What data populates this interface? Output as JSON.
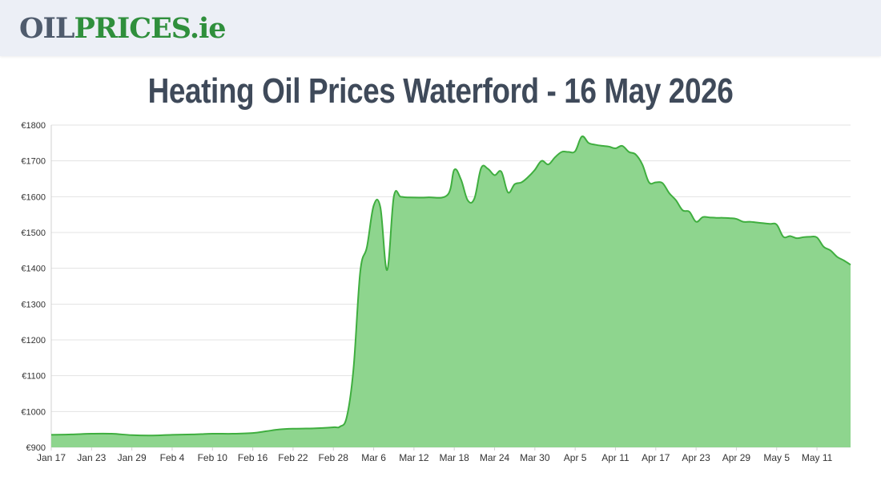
{
  "header": {
    "logo_part1": "OIL",
    "logo_part2": "PRICES",
    "logo_part3": ".ie"
  },
  "page": {
    "title": "Heating Oil Prices Waterford - 16 May 2026"
  },
  "colors": {
    "accent": "#2f8f3c",
    "line": "#3fae3f",
    "fill": "#8ed58e",
    "header_bg": "#eceff6",
    "title": "#3f4a5a"
  },
  "chart_data": {
    "type": "area",
    "title": "",
    "xlabel": "",
    "ylabel": "",
    "ylim": [
      900,
      1800
    ],
    "y_ticks": [
      900,
      1000,
      1100,
      1200,
      1300,
      1400,
      1500,
      1600,
      1700,
      1800
    ],
    "y_tick_labels": [
      "€900",
      "€1000",
      "€1100",
      "€1200",
      "€1300",
      "€1400",
      "€1500",
      "€1600",
      "€1700",
      "€1800"
    ],
    "x_range": [
      "2026-01-17",
      "2026-05-16"
    ],
    "x_ticks": [
      "2026-01-17",
      "2026-01-23",
      "2026-01-29",
      "2026-02-04",
      "2026-02-10",
      "2026-02-16",
      "2026-02-22",
      "2026-02-28",
      "2026-03-06",
      "2026-03-12",
      "2026-03-18",
      "2026-03-24",
      "2026-03-30",
      "2026-04-05",
      "2026-04-11",
      "2026-04-17",
      "2026-04-23",
      "2026-04-29",
      "2026-05-05",
      "2026-05-11"
    ],
    "x_tick_labels": [
      "Jan 17",
      "Jan 23",
      "Jan 29",
      "Feb 4",
      "Feb 10",
      "Feb 16",
      "Feb 22",
      "Feb 28",
      "Mar 6",
      "Mar 12",
      "Mar 18",
      "Mar 24",
      "Mar 30",
      "Apr 5",
      "Apr 11",
      "Apr 17",
      "Apr 23",
      "Apr 29",
      "May 5",
      "May 11"
    ],
    "grid": true,
    "legend": "none",
    "series": [
      {
        "x": [
          "2026-01-17",
          "2026-01-20",
          "2026-01-23",
          "2026-01-26",
          "2026-01-29",
          "2026-02-01",
          "2026-02-04",
          "2026-02-07",
          "2026-02-10",
          "2026-02-13",
          "2026-02-16",
          "2026-02-18",
          "2026-02-20",
          "2026-02-22",
          "2026-02-25",
          "2026-02-28",
          "2026-03-01",
          "2026-03-02",
          "2026-03-03",
          "2026-03-04",
          "2026-03-05",
          "2026-03-06",
          "2026-03-07",
          "2026-03-08",
          "2026-03-09",
          "2026-03-10",
          "2026-03-11",
          "2026-03-14",
          "2026-03-17",
          "2026-03-18",
          "2026-03-19",
          "2026-03-20",
          "2026-03-21",
          "2026-03-22",
          "2026-03-23",
          "2026-03-24",
          "2026-03-25",
          "2026-03-26",
          "2026-03-27",
          "2026-03-28",
          "2026-03-29",
          "2026-03-30",
          "2026-03-31",
          "2026-04-01",
          "2026-04-02",
          "2026-04-03",
          "2026-04-04",
          "2026-04-05",
          "2026-04-06",
          "2026-04-07",
          "2026-04-08",
          "2026-04-09",
          "2026-04-10",
          "2026-04-11",
          "2026-04-12",
          "2026-04-13",
          "2026-04-14",
          "2026-04-15",
          "2026-04-16",
          "2026-04-17",
          "2026-04-18",
          "2026-04-19",
          "2026-04-20",
          "2026-04-21",
          "2026-04-22",
          "2026-04-23",
          "2026-04-24",
          "2026-04-25",
          "2026-04-26",
          "2026-04-27",
          "2026-04-28",
          "2026-04-29",
          "2026-04-30",
          "2026-05-01",
          "2026-05-02",
          "2026-05-03",
          "2026-05-04",
          "2026-05-05",
          "2026-05-06",
          "2026-05-07",
          "2026-05-08",
          "2026-05-09",
          "2026-05-10",
          "2026-05-11",
          "2026-05-12",
          "2026-05-13",
          "2026-05-14",
          "2026-05-15",
          "2026-05-16"
        ],
        "values": [
          935,
          936,
          938,
          938,
          934,
          933,
          935,
          936,
          938,
          938,
          940,
          945,
          950,
          952,
          953,
          956,
          958,
          985,
          1120,
          1390,
          1460,
          1575,
          1570,
          1395,
          1600,
          1600,
          1598,
          1598,
          1605,
          1675,
          1648,
          1590,
          1595,
          1680,
          1678,
          1660,
          1670,
          1612,
          1635,
          1640,
          1655,
          1675,
          1700,
          1690,
          1710,
          1725,
          1725,
          1727,
          1768,
          1750,
          1745,
          1742,
          1740,
          1735,
          1742,
          1725,
          1718,
          1690,
          1640,
          1640,
          1638,
          1610,
          1590,
          1562,
          1558,
          1530,
          1543,
          1542,
          1541,
          1541,
          1540,
          1538,
          1530,
          1530,
          1528,
          1526,
          1524,
          1522,
          1488,
          1490,
          1484,
          1487,
          1488,
          1486,
          1460,
          1450,
          1432,
          1422,
          1410
        ]
      }
    ]
  }
}
